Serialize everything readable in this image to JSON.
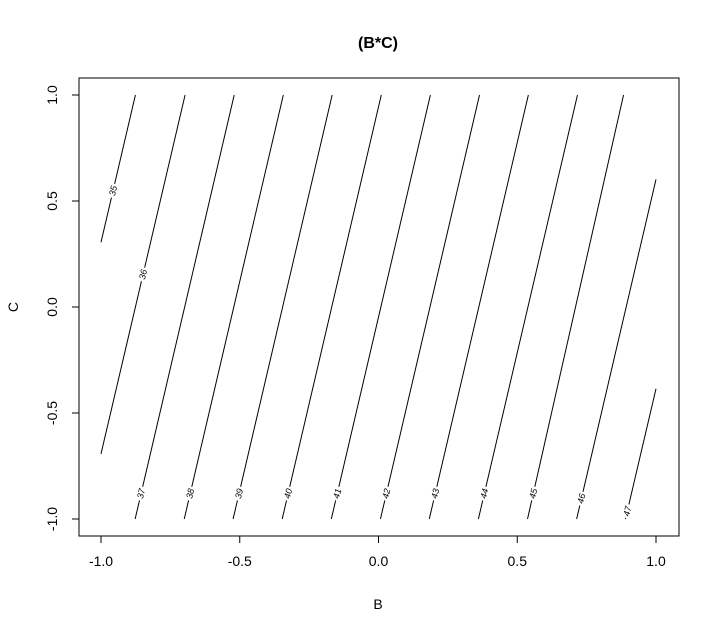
{
  "chart_data": {
    "type": "contour",
    "title": "(B*C)",
    "xlabel": "B",
    "ylabel": "C",
    "xlim": [
      -1.0,
      1.0
    ],
    "ylim": [
      -1.0,
      1.0
    ],
    "xticks": [
      -1.0,
      -0.5,
      0.0,
      0.5,
      1.0
    ],
    "yticks": [
      -1.0,
      -0.5,
      0.0,
      0.5,
      1.0
    ],
    "xtick_labels": [
      "-1.0",
      "-0.5",
      "0.0",
      "0.5",
      "1.0"
    ],
    "ytick_labels": [
      "-1.0",
      "-0.5",
      "0.0",
      "0.5",
      "1.0"
    ],
    "grid": false,
    "contours": [
      {
        "level": 35,
        "label": "35",
        "b_at_c_minus1": -1.233,
        "b_at_c_plus1": -0.876
      },
      {
        "level": 36,
        "label": "36",
        "b_at_c_minus1": -1.055,
        "b_at_c_plus1": -0.697
      },
      {
        "level": 37,
        "label": "37",
        "b_at_c_minus1": -0.877,
        "b_at_c_plus1": -0.52
      },
      {
        "level": 38,
        "label": "38",
        "b_at_c_minus1": -0.7,
        "b_at_c_plus1": -0.343
      },
      {
        "level": 39,
        "label": "39",
        "b_at_c_minus1": -0.524,
        "b_at_c_plus1": -0.167
      },
      {
        "level": 40,
        "label": "40",
        "b_at_c_minus1": -0.347,
        "b_at_c_plus1": 0.01
      },
      {
        "level": 41,
        "label": "41",
        "b_at_c_minus1": -0.17,
        "b_at_c_plus1": 0.187
      },
      {
        "level": 42,
        "label": "42",
        "b_at_c_minus1": 0.007,
        "b_at_c_plus1": 0.364
      },
      {
        "level": 43,
        "label": "43",
        "b_at_c_minus1": 0.183,
        "b_at_c_plus1": 0.54
      },
      {
        "level": 44,
        "label": "44",
        "b_at_c_minus1": 0.36,
        "b_at_c_plus1": 0.717
      },
      {
        "level": 45,
        "label": "45",
        "b_at_c_minus1": 0.537,
        "b_at_c_plus1": 0.883
      },
      {
        "level": 46,
        "label": "46",
        "b_at_c_minus1": 0.714,
        "b_at_c_plus1": 1.071
      },
      {
        "level": 47,
        "label": "47",
        "b_at_c_minus1": 0.89,
        "b_at_c_plus1": 1.248
      }
    ]
  }
}
